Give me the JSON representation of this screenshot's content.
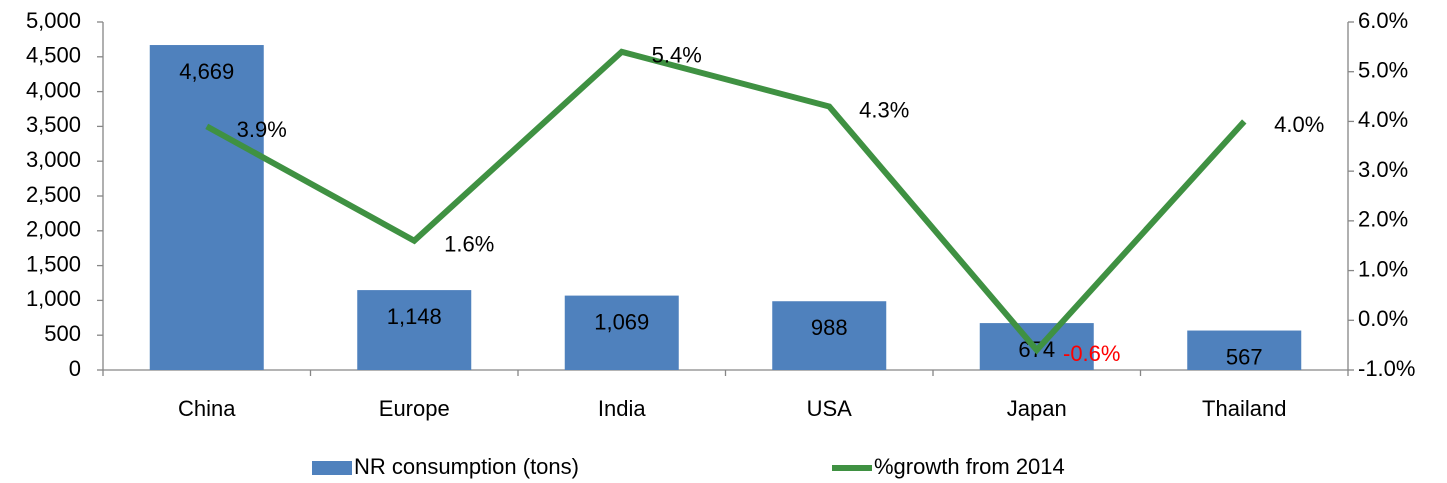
{
  "chart_data": {
    "type": "bar_line",
    "categories": [
      "China",
      "Europe",
      "India",
      "USA",
      "Japan",
      "Thailand"
    ],
    "series": [
      {
        "name": "NR consumption (tons)",
        "type": "bar",
        "color": "#4f81bd",
        "values": [
          4669,
          1148,
          1069,
          988,
          674,
          567
        ],
        "value_labels": [
          "4,669",
          "1,148",
          "1,069",
          "988",
          "674",
          "567"
        ]
      },
      {
        "name": "%growth from 2014",
        "type": "line",
        "axis": "y2",
        "color": "#3f9142",
        "values": [
          3.9,
          1.6,
          5.4,
          4.3,
          -0.6,
          4.0
        ],
        "value_labels": [
          "3.9%",
          "1.6%",
          "5.4%",
          "4.3%",
          "-0.6%",
          "4.0%"
        ],
        "negative_label_color": "#ff0000"
      }
    ],
    "ylim": [
      0,
      5000
    ],
    "yticks": [
      0,
      500,
      {
        "value": 1000,
        "label": "1,000"
      },
      {
        "value": 1500,
        "label": "1,500"
      },
      {
        "value": 2000,
        "label": "2,000"
      },
      {
        "value": 2500,
        "label": "2,500"
      },
      {
        "value": 3000,
        "label": "3,000"
      },
      {
        "value": 3500,
        "label": "3,500"
      },
      {
        "value": 4000,
        "label": "4,000"
      },
      {
        "value": 4500,
        "label": "4,500"
      },
      {
        "value": 5000,
        "label": "5,000"
      }
    ],
    "y2lim": [
      -1.0,
      6.0
    ],
    "y2ticks": [
      {
        "value": -1.0,
        "label": "-1.0%"
      },
      {
        "value": 0.0,
        "label": "0.0%"
      },
      {
        "value": 1.0,
        "label": "1.0%"
      },
      {
        "value": 2.0,
        "label": "2.0%"
      },
      {
        "value": 3.0,
        "label": "3.0%"
      },
      {
        "value": 4.0,
        "label": "4.0%"
      },
      {
        "value": 5.0,
        "label": "5.0%"
      },
      {
        "value": 6.0,
        "label": "6.0%"
      }
    ],
    "legend": "bottom"
  }
}
